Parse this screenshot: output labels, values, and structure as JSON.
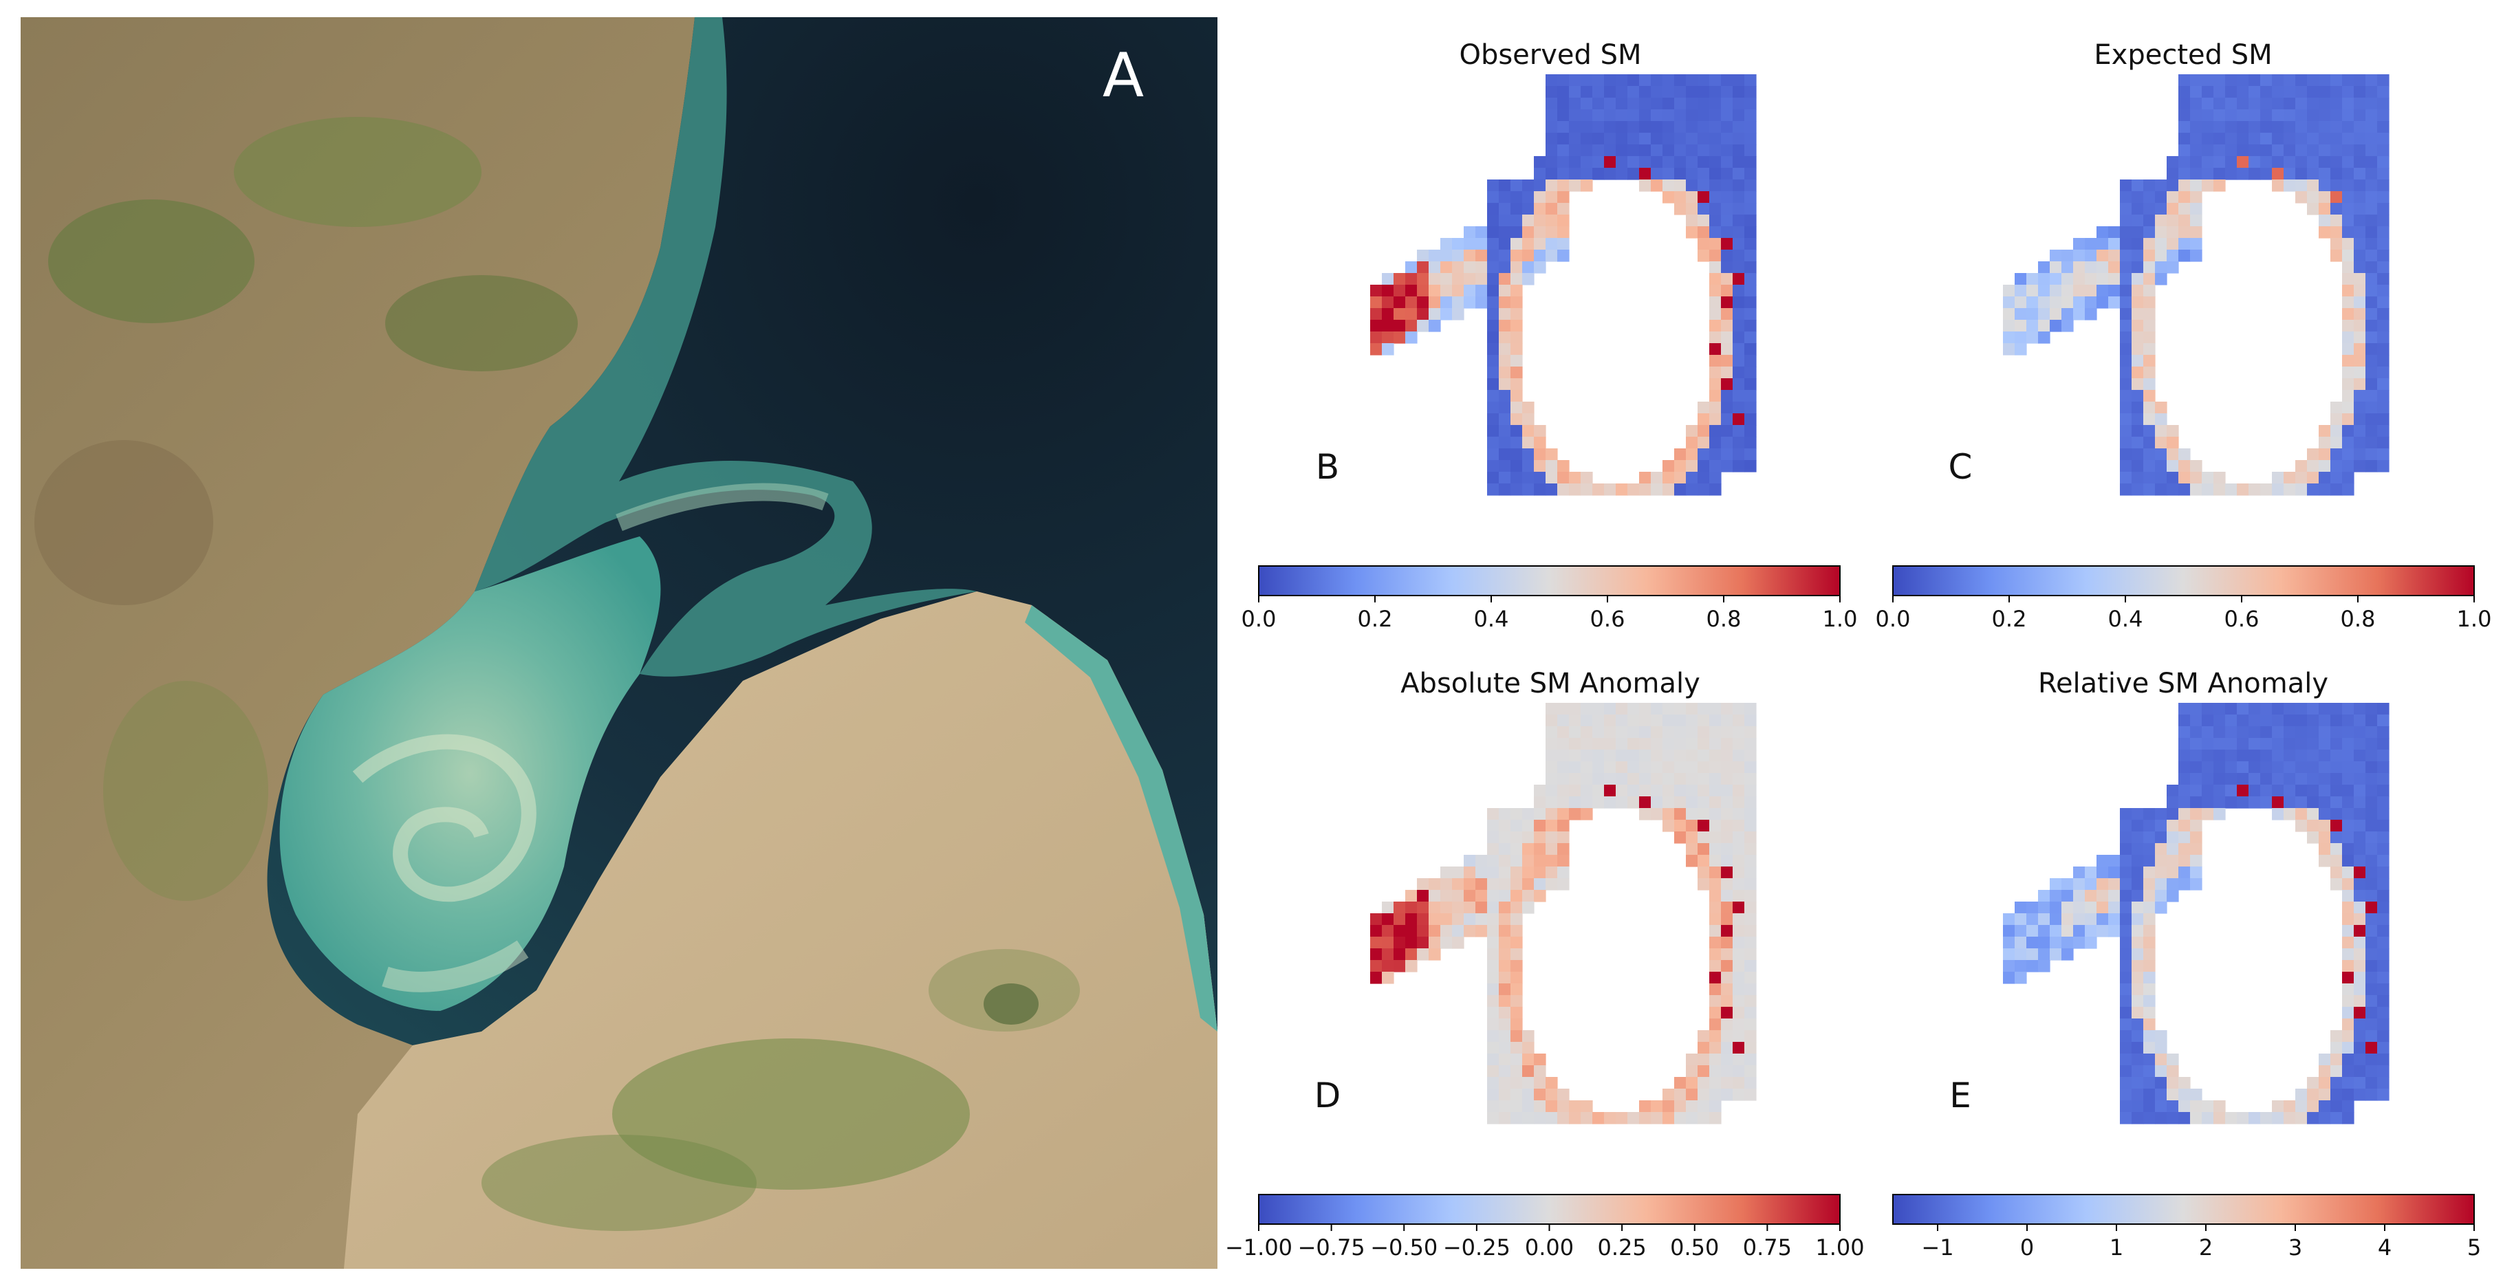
{
  "satellite": {
    "panel_label": "A"
  },
  "colors": {
    "cmap": [
      "#3b4cc0",
      "#6f92f3",
      "#aac7fd",
      "#dddcdc",
      "#f7b89c",
      "#e7745b",
      "#b40426"
    ],
    "land": "#c8b08a",
    "vegetation": "#6f8a45",
    "sea_dark": "#142432",
    "sea_turquoise": "#4fa89a",
    "sediment": "#8cc3a8"
  },
  "chart_data": [
    {
      "type": "heatmap",
      "panel": "B",
      "title": "Observed SM",
      "colorbar": {
        "vmin": 0.0,
        "vmax": 1.0,
        "ticks": [
          "0.0",
          "0.2",
          "0.4",
          "0.6",
          "0.8",
          "1.0"
        ]
      },
      "mask_values": {
        "ocean": 0.06,
        "shore_low": 0.35,
        "shore_mid": 0.62,
        "inland_wet": 0.95,
        "hotspot": 1.0
      }
    },
    {
      "type": "heatmap",
      "panel": "C",
      "title": "Expected SM",
      "colorbar": {
        "vmin": 0.0,
        "vmax": 1.0,
        "ticks": [
          "0.0",
          "0.2",
          "0.4",
          "0.6",
          "0.8",
          "1.0"
        ]
      },
      "mask_values": {
        "ocean": 0.08,
        "shore_low": 0.25,
        "shore_mid": 0.55,
        "inland_wet": 0.4,
        "hotspot": 0.85
      }
    },
    {
      "type": "heatmap",
      "panel": "D",
      "title": "Absolute SM Anomaly",
      "colorbar": {
        "vmin": -1.0,
        "vmax": 1.0,
        "ticks": [
          "−1.00",
          "−0.75",
          "−0.50",
          "−0.25",
          "0.00",
          "0.25",
          "0.50",
          "0.75",
          "1.00"
        ]
      },
      "mask_values": {
        "ocean": 0.0,
        "shore_low": 0.1,
        "shore_mid": 0.3,
        "inland_wet": 0.95,
        "hotspot": 1.0
      }
    },
    {
      "type": "heatmap",
      "panel": "E",
      "title": "Relative SM Anomaly",
      "colorbar": {
        "vmin": -1.5,
        "vmax": 5.0,
        "ticks": [
          "−1",
          "0",
          "1",
          "2",
          "3",
          "4",
          "5"
        ]
      },
      "mask_values": {
        "ocean": -1.0,
        "shore_low": 0.3,
        "shore_mid": 1.9,
        "inland_wet": 0.9,
        "hotspot": 5.0
      }
    }
  ]
}
